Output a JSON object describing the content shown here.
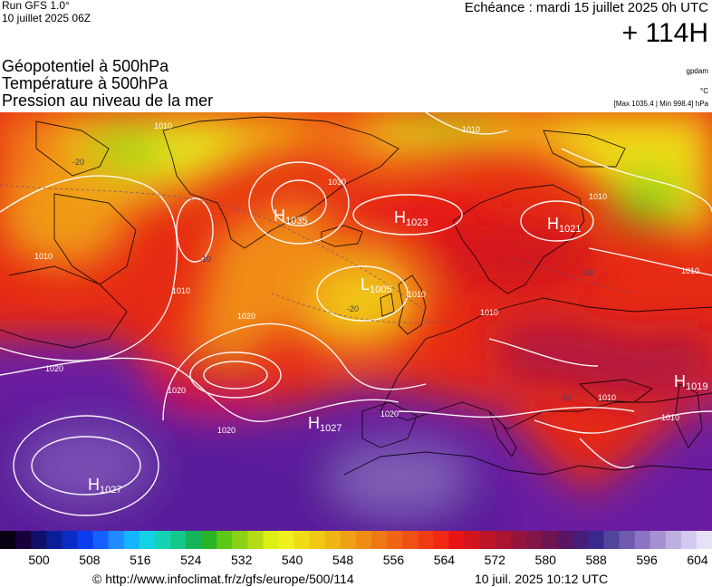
{
  "header": {
    "run_title": "Run GFS 1.0°",
    "run_date": "10 juillet 2025 06Z",
    "valid_time": "Echéance : mardi 15 juillet 2025 0h UTC",
    "lead_time": "+ 114H",
    "fields": [
      "Géopotentiel à 500hPa",
      "Température à 500hPa",
      "Pression au niveau de la mer"
    ],
    "unit_geopotential": "gpdam",
    "unit_temperature": "°C",
    "minmax": "[Max 1035.4 | Min 998.4] hPa"
  },
  "map": {
    "pressure_centers": [
      {
        "type": "H",
        "value": "1035"
      },
      {
        "type": "H",
        "value": "1023"
      },
      {
        "type": "H",
        "value": "1021"
      },
      {
        "type": "L",
        "value": "1005"
      },
      {
        "type": "H",
        "value": "1027"
      },
      {
        "type": "H",
        "value": "1027"
      },
      {
        "type": "H",
        "value": "1019"
      }
    ],
    "isobar_labels": [
      "1010",
      "1010",
      "1010",
      "1010",
      "1020",
      "1020",
      "1020",
      "1020",
      "1020",
      "1030",
      "1010",
      "1010",
      "1010",
      "1010",
      "1010",
      "1010"
    ],
    "temperature_labels": [
      "-20",
      "-20",
      "-10",
      "-10",
      "-10"
    ]
  },
  "colorbar": {
    "ticks": [
      "500",
      "508",
      "516",
      "524",
      "532",
      "540",
      "548",
      "556",
      "564",
      "572",
      "580",
      "588",
      "596",
      "604"
    ],
    "colors": [
      "#0a0014",
      "#18003c",
      "#10106a",
      "#0c1e96",
      "#0a2cc4",
      "#0a3cf0",
      "#1460ff",
      "#1e8cff",
      "#14b4ff",
      "#14d2e6",
      "#14d2b4",
      "#14c88c",
      "#14b45a",
      "#28b428",
      "#5ac814",
      "#8cd214",
      "#b4dc14",
      "#dcf014",
      "#f0f01e",
      "#f0dc14",
      "#f0c814",
      "#f0b414",
      "#f0a014",
      "#f08c14",
      "#f07814",
      "#f06414",
      "#f05014",
      "#f03c14",
      "#f02814",
      "#e61414",
      "#d2141e",
      "#be1428",
      "#aa1432",
      "#96143c",
      "#821446",
      "#6e1450",
      "#5a1464",
      "#461e78",
      "#3c288c",
      "#50469b",
      "#6e5aaf",
      "#8c73c3",
      "#a591d2",
      "#beafe1",
      "#d2c8f0",
      "#e6e1f5"
    ]
  },
  "footer": {
    "url": "© http://www.infoclimat.fr/z/gfs/europe/500/114",
    "timestamp": "10 juil. 2025 10:12 UTC"
  }
}
